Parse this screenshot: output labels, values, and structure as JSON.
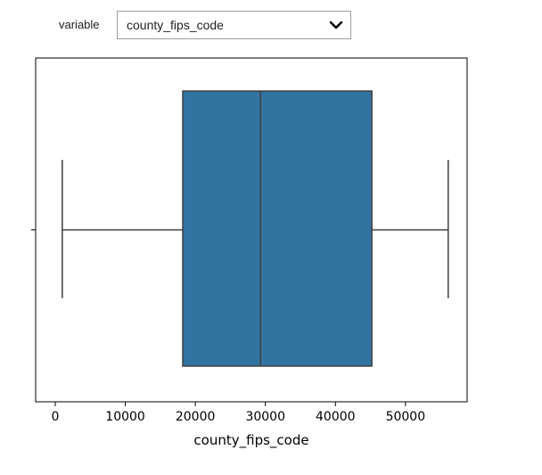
{
  "widget": {
    "label": "variable",
    "selected": "county_fips_code",
    "icon": "chevron-down-icon"
  },
  "chart_data": {
    "type": "box",
    "orientation": "horizontal",
    "xlabel": "county_fips_code",
    "ylabel": "",
    "x_ticks": [
      0,
      10000,
      20000,
      30000,
      40000,
      50000
    ],
    "x_tick_labels": [
      "0",
      "10000",
      "20000",
      "30000",
      "40000",
      "50000"
    ],
    "xlim": [
      -2800,
      58800
    ],
    "grid": false,
    "series": [
      {
        "whisker_low": 1000,
        "q1": 18200,
        "median": 29300,
        "q3": 45200,
        "whisker_high": 56100,
        "color": "#3274a1",
        "edge_color": "#3f3f3f"
      }
    ]
  }
}
